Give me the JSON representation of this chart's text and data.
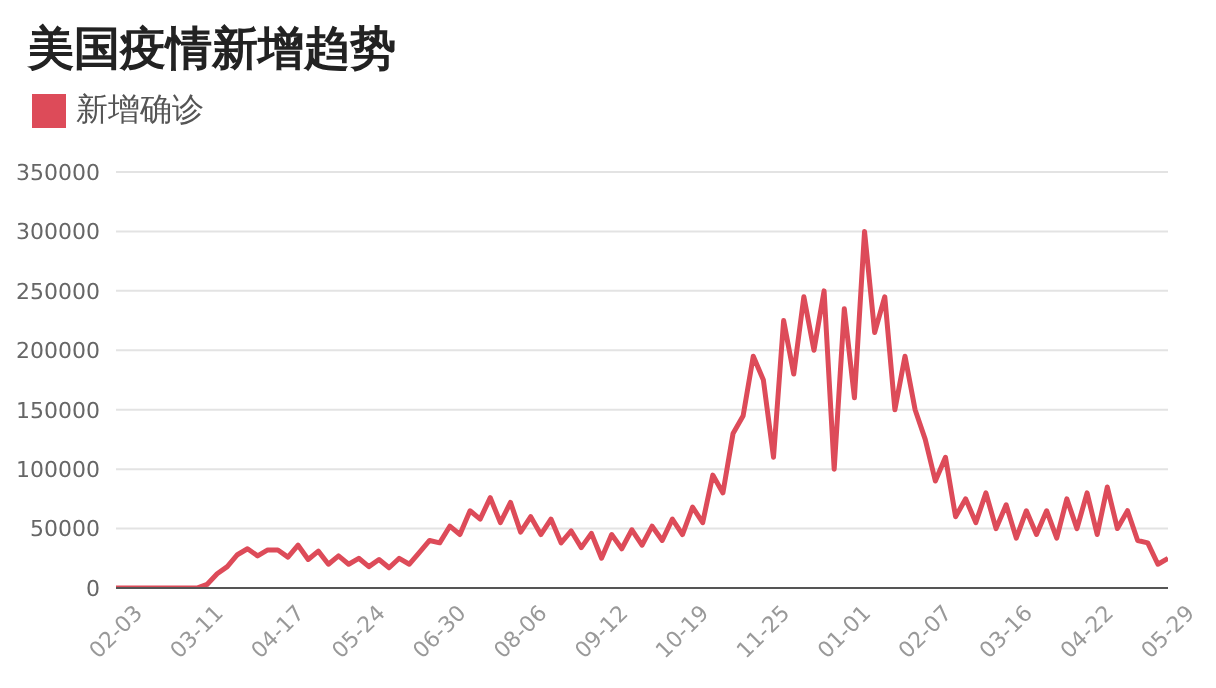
{
  "chart_data": {
    "type": "line",
    "title": "美国疫情新增趋势",
    "legend": "top left",
    "grid": "y",
    "ylim": [
      0,
      350000
    ],
    "yticks": [
      0,
      50000,
      100000,
      150000,
      200000,
      250000,
      300000,
      350000
    ],
    "categories": [
      "02-03",
      null,
      null,
      null,
      null,
      null,
      null,
      null,
      "03-11",
      null,
      null,
      null,
      null,
      null,
      null,
      null,
      "04-17",
      null,
      null,
      null,
      null,
      null,
      null,
      null,
      "05-24",
      null,
      null,
      null,
      null,
      null,
      null,
      null,
      "06-30",
      null,
      null,
      null,
      null,
      null,
      null,
      null,
      "08-06",
      null,
      null,
      null,
      null,
      null,
      null,
      null,
      "09-12",
      null,
      null,
      null,
      null,
      null,
      null,
      null,
      "10-19",
      null,
      null,
      null,
      null,
      null,
      null,
      null,
      "11-25",
      null,
      null,
      null,
      null,
      null,
      null,
      null,
      "01-01",
      null,
      null,
      null,
      null,
      null,
      null,
      null,
      "02-07",
      null,
      null,
      null,
      null,
      null,
      null,
      null,
      "03-16",
      null,
      null,
      null,
      null,
      null,
      null,
      null,
      "04-22",
      null,
      null,
      null,
      null,
      null,
      null,
      null,
      "05-29"
    ],
    "series": [
      {
        "name": "新增确诊",
        "color": "#dd4b59",
        "values": [
          0,
          0,
          0,
          0,
          0,
          0,
          0,
          0,
          0,
          3000,
          12000,
          18000,
          28000,
          33000,
          27000,
          32000,
          32000,
          26000,
          36000,
          24000,
          31000,
          20000,
          27000,
          20000,
          25000,
          18000,
          24000,
          17000,
          25000,
          20000,
          30000,
          40000,
          38000,
          52000,
          45000,
          65000,
          58000,
          76000,
          55000,
          72000,
          47000,
          60000,
          45000,
          58000,
          38000,
          48000,
          34000,
          46000,
          25000,
          45000,
          33000,
          49000,
          36000,
          52000,
          40000,
          58000,
          45000,
          68000,
          55000,
          95000,
          80000,
          130000,
          145000,
          195000,
          175000,
          110000,
          225000,
          180000,
          245000,
          200000,
          250000,
          100000,
          235000,
          160000,
          300000,
          215000,
          245000,
          150000,
          195000,
          150000,
          125000,
          90000,
          110000,
          60000,
          75000,
          55000,
          80000,
          50000,
          70000,
          42000,
          65000,
          45000,
          65000,
          42000,
          75000,
          50000,
          80000,
          45000,
          85000,
          50000,
          65000,
          40000,
          38000,
          20000,
          25000
        ]
      }
    ]
  }
}
